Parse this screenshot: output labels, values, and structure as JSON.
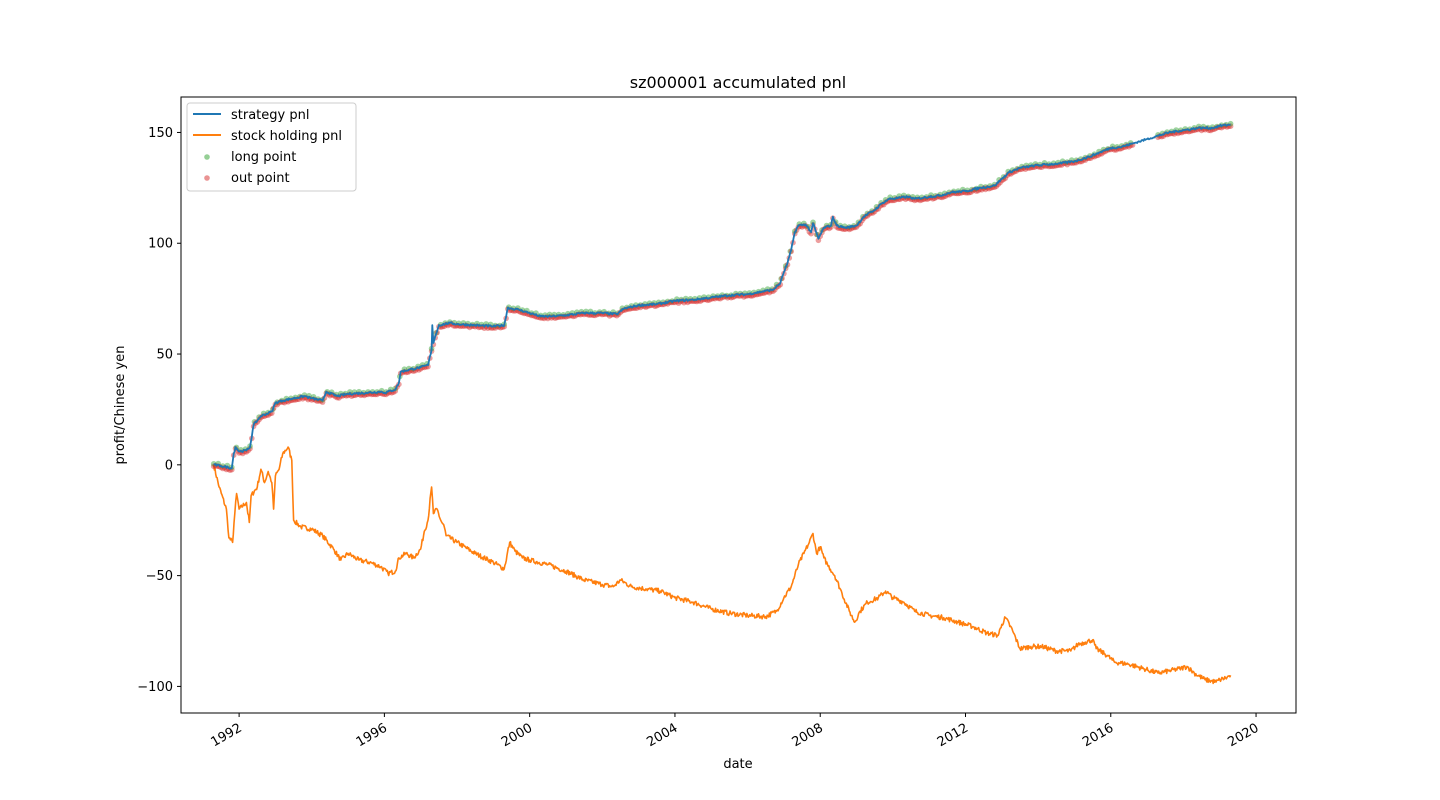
{
  "chart_data": {
    "type": "line",
    "title": "sz000001 accumulated pnl",
    "xlabel": "date",
    "ylabel": "profit/Chinese yen",
    "xlim": [
      1990.4,
      2021.1
    ],
    "ylim": [
      -112,
      166
    ],
    "x_ticks": [
      {
        "value": 1992,
        "label": "1992"
      },
      {
        "value": 1996,
        "label": "1996"
      },
      {
        "value": 2000,
        "label": "2000"
      },
      {
        "value": 2004,
        "label": "2004"
      },
      {
        "value": 2008,
        "label": "2008"
      },
      {
        "value": 2012,
        "label": "2012"
      },
      {
        "value": 2016,
        "label": "2016"
      },
      {
        "value": 2020,
        "label": "2020"
      }
    ],
    "y_ticks": [
      {
        "value": -100,
        "label": "−100"
      },
      {
        "value": -50,
        "label": "−50"
      },
      {
        "value": 0,
        "label": "0"
      },
      {
        "value": 50,
        "label": "50"
      },
      {
        "value": 100,
        "label": "100"
      },
      {
        "value": 150,
        "label": "150"
      }
    ],
    "grid": false,
    "legend_position": "top-left",
    "series": [
      {
        "name": "strategy pnl",
        "kind": "line",
        "color": "#1f77b4",
        "points": [
          [
            1991.3,
            0
          ],
          [
            1991.5,
            -0.5
          ],
          [
            1991.8,
            -1.5
          ],
          [
            1991.85,
            5
          ],
          [
            1991.9,
            8
          ],
          [
            1992.0,
            6
          ],
          [
            1992.2,
            6.5
          ],
          [
            1992.3,
            8
          ],
          [
            1992.4,
            18
          ],
          [
            1992.5,
            20
          ],
          [
            1992.6,
            22
          ],
          [
            1992.9,
            24
          ],
          [
            1993.0,
            28
          ],
          [
            1993.2,
            29
          ],
          [
            1993.5,
            30
          ],
          [
            1993.8,
            31
          ],
          [
            1994.0,
            30
          ],
          [
            1994.3,
            29
          ],
          [
            1994.4,
            33
          ],
          [
            1994.7,
            31
          ],
          [
            1995.0,
            32
          ],
          [
            1995.5,
            32.5
          ],
          [
            1995.9,
            33
          ],
          [
            1996.0,
            32.5
          ],
          [
            1996.3,
            34
          ],
          [
            1996.4,
            37
          ],
          [
            1996.45,
            42
          ],
          [
            1996.7,
            43
          ],
          [
            1997.0,
            44
          ],
          [
            1997.2,
            45
          ],
          [
            1997.3,
            52
          ],
          [
            1997.32,
            63
          ],
          [
            1997.35,
            55
          ],
          [
            1997.4,
            58
          ],
          [
            1997.5,
            63
          ],
          [
            1997.8,
            64
          ],
          [
            1998.0,
            63.5
          ],
          [
            1998.5,
            63
          ],
          [
            1999.0,
            62.5
          ],
          [
            1999.3,
            63
          ],
          [
            1999.4,
            71
          ],
          [
            1999.5,
            70.5
          ],
          [
            1999.7,
            70
          ],
          [
            2000.0,
            68.5
          ],
          [
            2000.3,
            67
          ],
          [
            2000.6,
            67
          ],
          [
            2001.0,
            67.5
          ],
          [
            2001.5,
            68.5
          ],
          [
            2002.0,
            68.5
          ],
          [
            2002.4,
            68
          ],
          [
            2002.6,
            70.5
          ],
          [
            2003.0,
            72
          ],
          [
            2003.5,
            72.5
          ],
          [
            2004.0,
            74
          ],
          [
            2004.5,
            74.5
          ],
          [
            2005.0,
            75.5
          ],
          [
            2005.5,
            76.5
          ],
          [
            2006.0,
            77
          ],
          [
            2006.5,
            78.5
          ],
          [
            2006.7,
            79
          ],
          [
            2006.9,
            82
          ],
          [
            2007.0,
            87
          ],
          [
            2007.1,
            91
          ],
          [
            2007.2,
            97
          ],
          [
            2007.3,
            105
          ],
          [
            2007.4,
            108
          ],
          [
            2007.6,
            108.5
          ],
          [
            2007.75,
            105
          ],
          [
            2007.8,
            109
          ],
          [
            2007.95,
            102
          ],
          [
            2008.1,
            107
          ],
          [
            2008.3,
            108
          ],
          [
            2008.35,
            112
          ],
          [
            2008.45,
            108
          ],
          [
            2008.7,
            107
          ],
          [
            2009.0,
            108
          ],
          [
            2009.2,
            112
          ],
          [
            2009.5,
            115
          ],
          [
            2009.7,
            118
          ],
          [
            2009.9,
            120
          ],
          [
            2010.2,
            120.5
          ],
          [
            2010.4,
            121
          ],
          [
            2010.6,
            120
          ],
          [
            2011.0,
            121
          ],
          [
            2011.3,
            121.5
          ],
          [
            2011.6,
            123
          ],
          [
            2012.0,
            123.5
          ],
          [
            2012.4,
            125
          ],
          [
            2012.8,
            126
          ],
          [
            2013.0,
            129
          ],
          [
            2013.2,
            132
          ],
          [
            2013.5,
            134
          ],
          [
            2013.9,
            135
          ],
          [
            2014.2,
            135.5
          ],
          [
            2014.6,
            136
          ],
          [
            2015.0,
            137
          ],
          [
            2015.4,
            139
          ],
          [
            2015.7,
            141
          ],
          [
            2016.0,
            143
          ],
          [
            2016.3,
            143.5
          ],
          [
            2016.6,
            145
          ],
          [
            2017.0,
            147
          ],
          [
            2017.3,
            148.5
          ],
          [
            2017.6,
            150
          ],
          [
            2018.0,
            151
          ],
          [
            2018.4,
            152
          ],
          [
            2018.8,
            152
          ],
          [
            2019.0,
            153
          ],
          [
            2019.3,
            153.5
          ]
        ]
      },
      {
        "name": "stock holding pnl",
        "kind": "line",
        "color": "#ff7f0e",
        "points": [
          [
            1991.3,
            0
          ],
          [
            1991.45,
            -10
          ],
          [
            1991.65,
            -20
          ],
          [
            1991.72,
            -33
          ],
          [
            1991.82,
            -35
          ],
          [
            1991.88,
            -22
          ],
          [
            1991.93,
            -13
          ],
          [
            1992.0,
            -20
          ],
          [
            1992.2,
            -17
          ],
          [
            1992.28,
            -26
          ],
          [
            1992.33,
            -14
          ],
          [
            1992.5,
            -10
          ],
          [
            1992.6,
            -2
          ],
          [
            1992.7,
            -8
          ],
          [
            1992.8,
            -3
          ],
          [
            1992.9,
            -8
          ],
          [
            1992.95,
            -20
          ],
          [
            1993.0,
            -5
          ],
          [
            1993.1,
            -2
          ],
          [
            1993.2,
            5
          ],
          [
            1993.35,
            8
          ],
          [
            1993.45,
            2
          ],
          [
            1993.5,
            -25
          ],
          [
            1993.7,
            -28
          ],
          [
            1994.0,
            -29
          ],
          [
            1994.3,
            -32
          ],
          [
            1994.6,
            -38
          ],
          [
            1994.8,
            -43
          ],
          [
            1995.0,
            -40
          ],
          [
            1995.3,
            -43
          ],
          [
            1995.6,
            -44
          ],
          [
            1995.9,
            -46
          ],
          [
            1996.1,
            -49
          ],
          [
            1996.3,
            -48
          ],
          [
            1996.4,
            -42
          ],
          [
            1996.6,
            -40
          ],
          [
            1996.8,
            -42
          ],
          [
            1997.0,
            -38
          ],
          [
            1997.1,
            -30
          ],
          [
            1997.2,
            -25
          ],
          [
            1997.3,
            -10
          ],
          [
            1997.35,
            -22
          ],
          [
            1997.45,
            -20
          ],
          [
            1997.55,
            -25
          ],
          [
            1997.65,
            -28
          ],
          [
            1997.7,
            -32
          ],
          [
            1998.0,
            -35
          ],
          [
            1998.5,
            -40
          ],
          [
            1999.0,
            -44
          ],
          [
            1999.3,
            -47
          ],
          [
            1999.45,
            -35
          ],
          [
            1999.6,
            -39
          ],
          [
            1999.8,
            -42
          ],
          [
            2000.0,
            -43
          ],
          [
            2000.5,
            -45
          ],
          [
            2001.0,
            -48
          ],
          [
            2001.5,
            -52
          ],
          [
            2002.0,
            -54
          ],
          [
            2002.3,
            -55
          ],
          [
            2002.5,
            -52
          ],
          [
            2002.8,
            -55
          ],
          [
            2003.2,
            -56
          ],
          [
            2003.6,
            -57
          ],
          [
            2004.0,
            -60
          ],
          [
            2004.5,
            -62
          ],
          [
            2005.0,
            -65
          ],
          [
            2005.5,
            -67
          ],
          [
            2006.0,
            -68
          ],
          [
            2006.5,
            -68.5
          ],
          [
            2006.8,
            -66
          ],
          [
            2007.0,
            -60
          ],
          [
            2007.2,
            -55
          ],
          [
            2007.4,
            -45
          ],
          [
            2007.55,
            -40
          ],
          [
            2007.7,
            -35
          ],
          [
            2007.8,
            -31
          ],
          [
            2007.9,
            -40
          ],
          [
            2008.0,
            -37
          ],
          [
            2008.1,
            -42
          ],
          [
            2008.2,
            -45
          ],
          [
            2008.4,
            -50
          ],
          [
            2008.6,
            -58
          ],
          [
            2008.8,
            -66
          ],
          [
            2008.95,
            -71
          ],
          [
            2009.1,
            -66
          ],
          [
            2009.3,
            -62
          ],
          [
            2009.6,
            -60
          ],
          [
            2009.8,
            -57
          ],
          [
            2010.0,
            -60
          ],
          [
            2010.3,
            -62
          ],
          [
            2010.6,
            -66
          ],
          [
            2011.0,
            -68
          ],
          [
            2011.4,
            -69
          ],
          [
            2011.8,
            -71
          ],
          [
            2012.2,
            -73
          ],
          [
            2012.6,
            -76
          ],
          [
            2012.9,
            -77
          ],
          [
            2013.0,
            -72
          ],
          [
            2013.1,
            -69
          ],
          [
            2013.3,
            -75
          ],
          [
            2013.5,
            -83
          ],
          [
            2013.8,
            -82
          ],
          [
            2014.1,
            -82
          ],
          [
            2014.5,
            -84
          ],
          [
            2014.9,
            -84
          ],
          [
            2015.1,
            -81
          ],
          [
            2015.3,
            -80
          ],
          [
            2015.5,
            -79
          ],
          [
            2015.6,
            -83
          ],
          [
            2015.9,
            -86
          ],
          [
            2016.1,
            -89
          ],
          [
            2016.5,
            -90
          ],
          [
            2016.9,
            -92
          ],
          [
            2017.3,
            -94
          ],
          [
            2017.6,
            -93
          ],
          [
            2017.9,
            -92
          ],
          [
            2018.1,
            -91
          ],
          [
            2018.3,
            -94
          ],
          [
            2018.6,
            -97
          ],
          [
            2018.9,
            -98
          ],
          [
            2019.0,
            -97
          ],
          [
            2019.2,
            -96
          ],
          [
            2019.3,
            -95
          ]
        ]
      },
      {
        "name": "long point",
        "kind": "scatter",
        "color": "#2ca02c",
        "alpha": 0.45
      },
      {
        "name": "out point",
        "kind": "scatter",
        "color": "#d62728",
        "alpha": 0.45
      }
    ]
  }
}
